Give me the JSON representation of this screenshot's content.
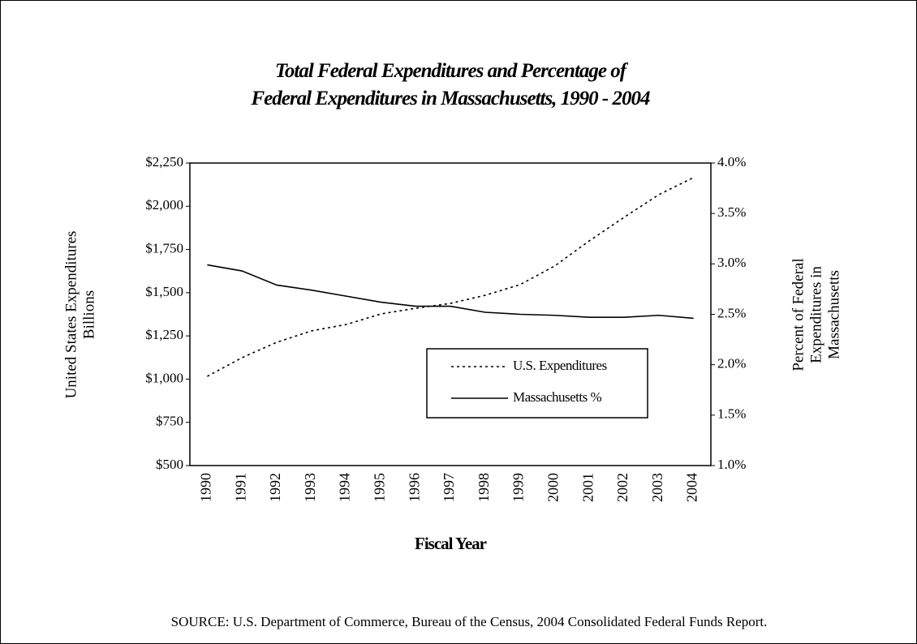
{
  "chart_data": {
    "type": "line",
    "title": [
      "Total Federal Expenditures and Percentage of",
      "Federal Expenditures in Massachusetts, 1990 - 2004"
    ],
    "y_label": [
      "United States Expenditures",
      "Billions"
    ],
    "y2_label": [
      "Percent of Federal",
      "Expenditures in",
      "Massachusetts"
    ],
    "x_label": "Fiscal Year",
    "source": "SOURCE:  U.S. Department of Commerce, Bureau of the Census, 2004 Consolidated Federal Funds Report.",
    "categories": [
      "1990",
      "1991",
      "1992",
      "1993",
      "1994",
      "1995",
      "1996",
      "1997",
      "1998",
      "1999",
      "2000",
      "2001",
      "2002",
      "2003",
      "2004"
    ],
    "series": [
      {
        "name": "U.S. Expenditures",
        "color": "#000000",
        "dash": true,
        "values": [
          1016,
          1124,
          1213,
          1279,
          1316,
          1377,
          1410,
          1438,
          1485,
          1546,
          1654,
          1800,
          1936,
          2067,
          2166
        ]
      },
      {
        "name": "Massachusetts %",
        "color": "#000000",
        "axis": "y2",
        "dash": false,
        "values": [
          2.99,
          2.93,
          2.79,
          2.74,
          2.68,
          2.62,
          2.58,
          2.58,
          2.52,
          2.5,
          2.49,
          2.47,
          2.47,
          2.49,
          2.46
        ]
      }
    ],
    "ylim": [
      500,
      2250
    ],
    "yticks": [
      {
        "value": 500,
        "label": "$500"
      },
      {
        "value": 750,
        "label": "$750"
      },
      {
        "value": 1000,
        "label": "$1,000"
      },
      {
        "value": 1250,
        "label": "$1,250"
      },
      {
        "value": 1500,
        "label": "$1,500"
      },
      {
        "value": 1750,
        "label": "$1,750"
      },
      {
        "value": 2000,
        "label": "$2,000"
      },
      {
        "value": 2250,
        "label": "$2,250"
      }
    ],
    "y2lim": [
      1.0,
      4.0
    ],
    "y2ticks": [
      {
        "value": 1.0,
        "label": "1.0%"
      },
      {
        "value": 1.5,
        "label": "1.5%"
      },
      {
        "value": 2.0,
        "label": "2.0%"
      },
      {
        "value": 2.5,
        "label": "2.5%"
      },
      {
        "value": 3.0,
        "label": "3.0%"
      },
      {
        "value": 3.5,
        "label": "3.5%"
      },
      {
        "value": 4.0,
        "label": "4.0%"
      }
    ],
    "grid": false
  }
}
